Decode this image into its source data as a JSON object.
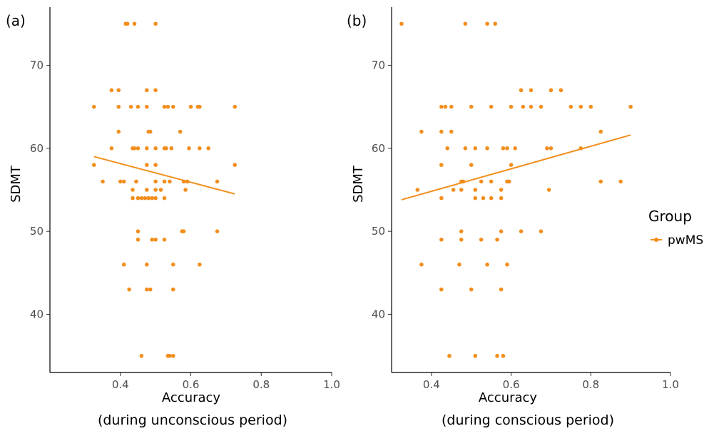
{
  "legend": {
    "title": "Group",
    "label": "pwMS"
  },
  "colors": {
    "series": "#F28E1C",
    "axis": "#000000",
    "tick_text": "#4d4d4d"
  },
  "chart_data": [
    {
      "type": "scatter",
      "panel_tag": "(a)",
      "xlabel": "Accuracy",
      "subtitle": "(during unconscious period)",
      "ylabel": "SDMT",
      "xlim": [
        0.2,
        1.0
      ],
      "ylim": [
        33,
        77
      ],
      "x_ticks": [
        0.4,
        0.6,
        0.8,
        1.0
      ],
      "x_tick_labels": [
        "0.4",
        "0.6",
        "0.8",
        "1.0"
      ],
      "y_ticks": [
        40,
        50,
        60,
        70
      ],
      "y_tick_labels": [
        "40",
        "50",
        "60",
        "70"
      ],
      "grid": false,
      "series": [
        {
          "name": "pwMS",
          "points": [
            [
              0.415,
              75
            ],
            [
              0.42,
              75
            ],
            [
              0.44,
              75
            ],
            [
              0.5,
              75
            ],
            [
              0.325,
              65
            ],
            [
              0.375,
              67
            ],
            [
              0.395,
              67
            ],
            [
              0.395,
              65
            ],
            [
              0.43,
              65
            ],
            [
              0.45,
              65
            ],
            [
              0.475,
              67
            ],
            [
              0.475,
              65
            ],
            [
              0.5,
              67
            ],
            [
              0.525,
              65
            ],
            [
              0.535,
              65
            ],
            [
              0.55,
              65
            ],
            [
              0.6,
              65
            ],
            [
              0.62,
              65
            ],
            [
              0.625,
              65
            ],
            [
              0.725,
              65
            ],
            [
              0.395,
              62
            ],
            [
              0.48,
              62
            ],
            [
              0.485,
              62
            ],
            [
              0.57,
              62
            ],
            [
              0.375,
              60
            ],
            [
              0.435,
              60
            ],
            [
              0.44,
              60
            ],
            [
              0.45,
              60
            ],
            [
              0.475,
              60
            ],
            [
              0.5,
              60
            ],
            [
              0.525,
              60
            ],
            [
              0.53,
              60
            ],
            [
              0.545,
              60
            ],
            [
              0.595,
              60
            ],
            [
              0.625,
              60
            ],
            [
              0.65,
              60
            ],
            [
              0.325,
              58
            ],
            [
              0.475,
              58
            ],
            [
              0.5,
              58
            ],
            [
              0.725,
              58
            ],
            [
              0.35,
              56
            ],
            [
              0.4,
              56
            ],
            [
              0.41,
              56
            ],
            [
              0.445,
              56
            ],
            [
              0.5,
              56
            ],
            [
              0.525,
              56
            ],
            [
              0.54,
              56
            ],
            [
              0.58,
              56
            ],
            [
              0.59,
              56
            ],
            [
              0.675,
              56
            ],
            [
              0.435,
              55
            ],
            [
              0.475,
              55
            ],
            [
              0.5,
              55
            ],
            [
              0.515,
              55
            ],
            [
              0.585,
              55
            ],
            [
              0.435,
              54
            ],
            [
              0.45,
              54
            ],
            [
              0.46,
              54
            ],
            [
              0.47,
              54
            ],
            [
              0.48,
              54
            ],
            [
              0.49,
              54
            ],
            [
              0.5,
              54
            ],
            [
              0.525,
              54
            ],
            [
              0.45,
              50
            ],
            [
              0.575,
              50
            ],
            [
              0.58,
              50
            ],
            [
              0.675,
              50
            ],
            [
              0.45,
              49
            ],
            [
              0.49,
              49
            ],
            [
              0.5,
              49
            ],
            [
              0.525,
              49
            ],
            [
              0.41,
              46
            ],
            [
              0.475,
              46
            ],
            [
              0.55,
              46
            ],
            [
              0.625,
              46
            ],
            [
              0.425,
              43
            ],
            [
              0.475,
              43
            ],
            [
              0.485,
              43
            ],
            [
              0.55,
              43
            ],
            [
              0.46,
              35
            ],
            [
              0.535,
              35
            ],
            [
              0.54,
              35
            ],
            [
              0.55,
              35
            ]
          ]
        }
      ],
      "trend_line": {
        "x": [
          0.325,
          0.725
        ],
        "y": [
          59.0,
          54.5
        ]
      }
    },
    {
      "type": "scatter",
      "panel_tag": "(b)",
      "xlabel": "Accuracy",
      "subtitle": "(during conscious period)",
      "ylabel": "SDMT",
      "xlim": [
        0.3,
        1.0
      ],
      "ylim": [
        33,
        77
      ],
      "x_ticks": [
        0.4,
        0.6,
        0.8,
        1.0
      ],
      "x_tick_labels": [
        "0.4",
        "0.6",
        "0.8",
        "1.0"
      ],
      "y_ticks": [
        40,
        50,
        60,
        70
      ],
      "y_tick_labels": [
        "40",
        "50",
        "60",
        "70"
      ],
      "grid": false,
      "series": [
        {
          "name": "pwMS",
          "points": [
            [
              0.325,
              75
            ],
            [
              0.485,
              75
            ],
            [
              0.54,
              75
            ],
            [
              0.56,
              75
            ],
            [
              0.625,
              67
            ],
            [
              0.65,
              67
            ],
            [
              0.7,
              67
            ],
            [
              0.725,
              67
            ],
            [
              0.425,
              65
            ],
            [
              0.435,
              65
            ],
            [
              0.45,
              65
            ],
            [
              0.5,
              65
            ],
            [
              0.55,
              65
            ],
            [
              0.6,
              65
            ],
            [
              0.63,
              65
            ],
            [
              0.65,
              65
            ],
            [
              0.675,
              65
            ],
            [
              0.75,
              65
            ],
            [
              0.775,
              65
            ],
            [
              0.8,
              65
            ],
            [
              0.9,
              65
            ],
            [
              0.375,
              62
            ],
            [
              0.425,
              62
            ],
            [
              0.45,
              62
            ],
            [
              0.825,
              62
            ],
            [
              0.44,
              60
            ],
            [
              0.485,
              60
            ],
            [
              0.51,
              60
            ],
            [
              0.54,
              60
            ],
            [
              0.58,
              60
            ],
            [
              0.59,
              60
            ],
            [
              0.61,
              60
            ],
            [
              0.69,
              60
            ],
            [
              0.7,
              60
            ],
            [
              0.775,
              60
            ],
            [
              0.425,
              58
            ],
            [
              0.5,
              58
            ],
            [
              0.6,
              58
            ],
            [
              0.475,
              56
            ],
            [
              0.48,
              56
            ],
            [
              0.525,
              56
            ],
            [
              0.55,
              56
            ],
            [
              0.59,
              56
            ],
            [
              0.595,
              56
            ],
            [
              0.825,
              56
            ],
            [
              0.875,
              56
            ],
            [
              0.365,
              55
            ],
            [
              0.455,
              55
            ],
            [
              0.475,
              55
            ],
            [
              0.51,
              55
            ],
            [
              0.575,
              55
            ],
            [
              0.695,
              55
            ],
            [
              0.425,
              54
            ],
            [
              0.51,
              54
            ],
            [
              0.53,
              54
            ],
            [
              0.55,
              54
            ],
            [
              0.575,
              54
            ],
            [
              0.475,
              50
            ],
            [
              0.575,
              50
            ],
            [
              0.625,
              50
            ],
            [
              0.675,
              50
            ],
            [
              0.425,
              49
            ],
            [
              0.475,
              49
            ],
            [
              0.525,
              49
            ],
            [
              0.565,
              49
            ],
            [
              0.375,
              46
            ],
            [
              0.47,
              46
            ],
            [
              0.54,
              46
            ],
            [
              0.59,
              46
            ],
            [
              0.425,
              43
            ],
            [
              0.5,
              43
            ],
            [
              0.575,
              43
            ],
            [
              0.445,
              35
            ],
            [
              0.51,
              35
            ],
            [
              0.565,
              35
            ],
            [
              0.58,
              35
            ]
          ]
        }
      ],
      "trend_line": {
        "x": [
          0.325,
          0.9
        ],
        "y": [
          53.8,
          61.6
        ]
      }
    }
  ]
}
